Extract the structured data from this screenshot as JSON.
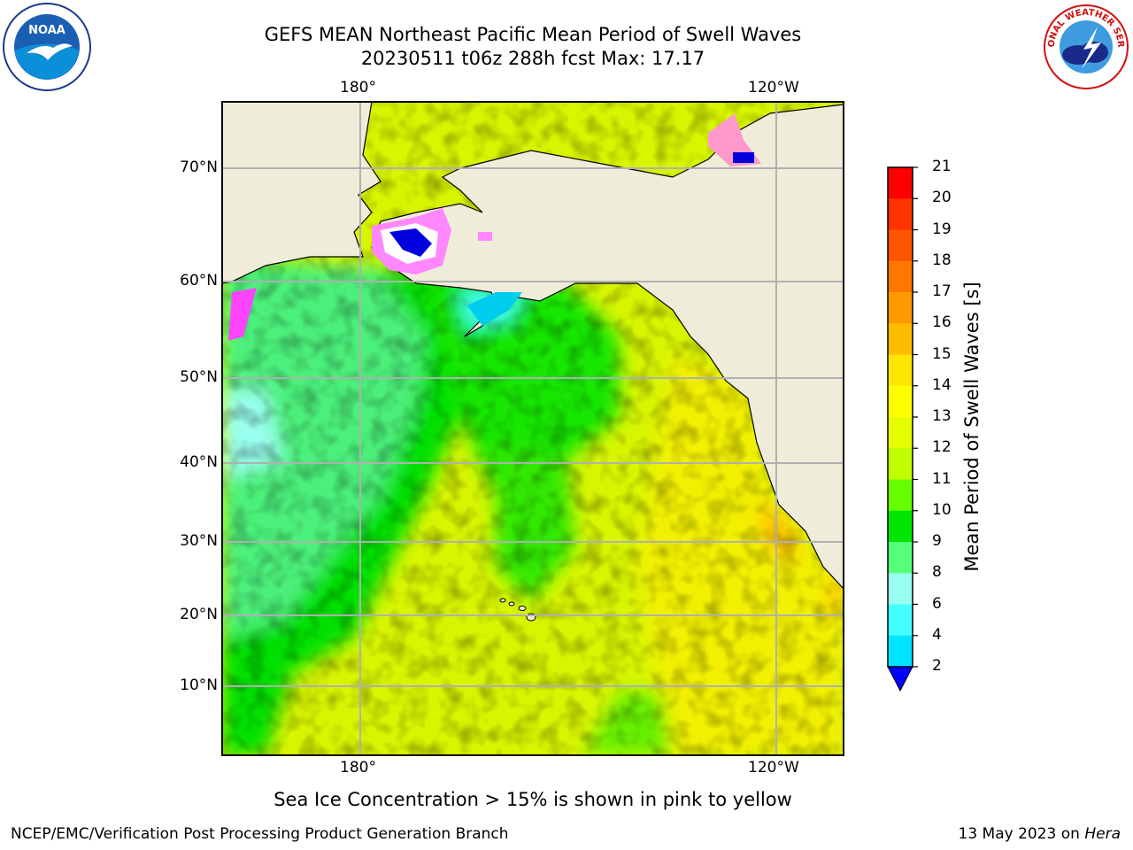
{
  "title": {
    "line1": "GEFS MEAN Northeast Pacific Mean Period of Swell Waves",
    "line2": "20230511 t06z 288h fcst   Max: 17.17"
  },
  "map": {
    "lon_labels": [
      "180°",
      "120°W"
    ],
    "lat_labels": [
      "70°N",
      "60°N",
      "50°N",
      "40°N",
      "30°N",
      "20°N",
      "10°N"
    ]
  },
  "colorbar": {
    "label": "Mean Period of Swell Waves [s]",
    "ticks": [
      "21",
      "20",
      "19",
      "18",
      "17",
      "16",
      "15",
      "14",
      "13",
      "12",
      "11",
      "10",
      "9",
      "8",
      "6",
      "4",
      "2"
    ],
    "colors": [
      "#ff0000",
      "#ff3300",
      "#ff5500",
      "#ff7700",
      "#ff9900",
      "#ffbb00",
      "#ffe600",
      "#ffff00",
      "#e6ff00",
      "#c0ff00",
      "#66ff00",
      "#00e600",
      "#55ff77",
      "#99ffee",
      "#44ffff",
      "#00e5ff",
      "#00b4ff",
      "#0070ff"
    ],
    "under_color": "#0000ff"
  },
  "note": "Sea Ice Concentration > 15% is shown in pink to yellow",
  "footer": {
    "left": "NCEP/EMC/Verification Post Processing Product Generation Branch",
    "date": "13 May 2023 on ",
    "machine": "Hera"
  },
  "logos": {
    "noaa_text": "NOAA",
    "nws_text": "NATIONAL WEATHER SERVICE"
  }
}
